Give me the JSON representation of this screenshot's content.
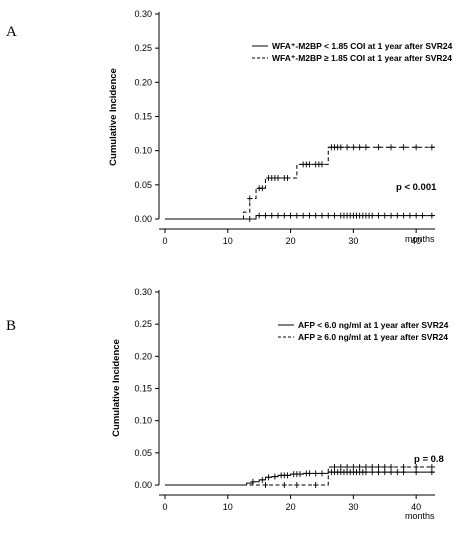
{
  "chart_data": [
    {
      "type": "line",
      "panel_label": "A",
      "title": "",
      "xlabel": "months",
      "ylabel": "Cumulative Incidence",
      "xlim": [
        0,
        43
      ],
      "ylim": [
        0,
        0.3
      ],
      "x_ticks": [
        "0",
        "10",
        "20",
        "30",
        "40"
      ],
      "y_ticks": [
        "0.00",
        "0.05",
        "0.10",
        "0.15",
        "0.20",
        "0.25",
        "0.30"
      ],
      "legend_position": "top-right",
      "grid": false,
      "annotation": "p < 0.001",
      "series": [
        {
          "name": "WFA⁺-M2BP < 1.85 COI at 1 year after SVR24",
          "line_style": "solid",
          "x": [
            0,
            14.5,
            43
          ],
          "y": [
            0,
            0.005,
            0.005
          ],
          "censored": [
            13.5,
            15,
            16,
            17,
            18,
            19,
            20,
            21,
            22,
            23,
            24,
            25,
            26,
            27,
            28,
            28.5,
            29,
            29.5,
            30,
            30.5,
            31,
            31.5,
            32,
            32.5,
            33,
            34,
            35,
            36,
            37,
            38,
            39,
            40,
            41,
            42.5
          ]
        },
        {
          "name": "WFA⁺-M2BP ≥ 1.85 COI at 1 year after SVR24",
          "line_style": "dashed",
          "x": [
            0,
            12.5,
            13.5,
            14.5,
            16,
            17,
            21,
            26,
            43
          ],
          "y": [
            0,
            0.01,
            0.03,
            0.045,
            0.06,
            0.06,
            0.08,
            0.105,
            0.105
          ],
          "censored": [
            13.5,
            15,
            15.5,
            16.5,
            17,
            17.5,
            18,
            19,
            19.5,
            22,
            22.5,
            23,
            24,
            24.5,
            25,
            26.5,
            27,
            27.5,
            28,
            29,
            30,
            31,
            32,
            34,
            36,
            38,
            40,
            42.5
          ]
        }
      ]
    },
    {
      "type": "line",
      "panel_label": "B",
      "title": "",
      "xlabel": "months",
      "ylabel": "Cumulative Incidence",
      "xlim": [
        0,
        43
      ],
      "ylim": [
        0,
        0.3
      ],
      "x_ticks": [
        "0",
        "10",
        "20",
        "30",
        "40"
      ],
      "y_ticks": [
        "0.00",
        "0.05",
        "0.10",
        "0.15",
        "0.20",
        "0.25",
        "0.30"
      ],
      "legend_position": "top-right",
      "grid": false,
      "annotation": "p = 0.8",
      "series": [
        {
          "name": "AFP < 6.0 ng/ml at 1 year after SVR24",
          "line_style": "solid",
          "x": [
            0,
            13,
            14,
            15,
            16,
            17,
            18,
            20,
            22,
            26,
            43
          ],
          "y": [
            0,
            0.003,
            0.005,
            0.008,
            0.012,
            0.013,
            0.015,
            0.017,
            0.018,
            0.02,
            0.02
          ],
          "censored": [
            14,
            15.5,
            16.5,
            17.5,
            18.5,
            19,
            19.5,
            20.5,
            21,
            21.5,
            22.5,
            23,
            24,
            25,
            26.5,
            27,
            27.5,
            28,
            28.5,
            29,
            29.5,
            30,
            30.5,
            31,
            31.5,
            32,
            33,
            34,
            35,
            36,
            37,
            38,
            40,
            42.5
          ]
        },
        {
          "name": "AFP ≥ 6.0 ng/ml at 1 year after SVR24",
          "line_style": "dashed",
          "x": [
            0,
            26,
            43
          ],
          "y": [
            0,
            0.028,
            0.028
          ],
          "censored": [
            16,
            19,
            21,
            24,
            27,
            28,
            29,
            30,
            31,
            32,
            33,
            34,
            35,
            36,
            38,
            40,
            42.5
          ]
        }
      ]
    }
  ]
}
